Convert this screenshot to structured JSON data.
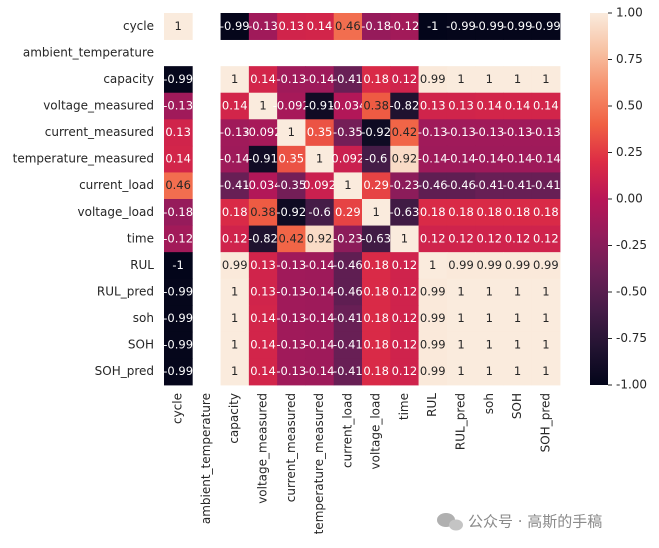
{
  "chart_data": {
    "type": "heatmap",
    "categories": [
      "cycle",
      "ambient_temperature",
      "capacity",
      "voltage_measured",
      "current_measured",
      "temperature_measured",
      "current_load",
      "voltage_load",
      "time",
      "RUL",
      "RUL_pred",
      "soh",
      "SOH",
      "SOH_pred"
    ],
    "values": [
      [
        1,
        null,
        -0.99,
        -0.13,
        0.13,
        0.14,
        0.46,
        -0.18,
        -0.12,
        -1,
        -0.99,
        -0.99,
        -0.99,
        -0.99
      ],
      [
        null,
        null,
        null,
        null,
        null,
        null,
        null,
        null,
        null,
        null,
        null,
        null,
        null,
        null
      ],
      [
        -0.99,
        null,
        1,
        0.14,
        -0.13,
        -0.14,
        -0.41,
        0.18,
        0.12,
        0.99,
        1,
        1,
        1,
        1
      ],
      [
        -0.13,
        null,
        0.14,
        1,
        -0.092,
        -0.91,
        -0.034,
        0.38,
        -0.82,
        0.13,
        0.13,
        0.14,
        0.14,
        0.14
      ],
      [
        0.13,
        null,
        -0.13,
        -0.092,
        1,
        0.35,
        -0.35,
        -0.92,
        0.42,
        -0.13,
        -0.13,
        -0.13,
        -0.13,
        -0.13
      ],
      [
        0.14,
        null,
        -0.14,
        -0.91,
        0.35,
        1,
        0.092,
        -0.6,
        0.92,
        -0.14,
        -0.14,
        -0.14,
        -0.14,
        -0.14
      ],
      [
        0.46,
        null,
        -0.41,
        -0.034,
        -0.35,
        0.092,
        1,
        0.29,
        -0.23,
        -0.46,
        -0.46,
        -0.41,
        -0.41,
        -0.41
      ],
      [
        -0.18,
        null,
        0.18,
        0.38,
        -0.92,
        -0.6,
        0.29,
        1,
        -0.63,
        0.18,
        0.18,
        0.18,
        0.18,
        0.18
      ],
      [
        -0.12,
        null,
        0.12,
        -0.82,
        0.42,
        0.92,
        -0.23,
        -0.63,
        1,
        0.12,
        0.12,
        0.12,
        0.12,
        0.12
      ],
      [
        -1,
        null,
        0.99,
        0.13,
        -0.13,
        -0.14,
        -0.46,
        0.18,
        0.12,
        1,
        0.99,
        0.99,
        0.99,
        0.99
      ],
      [
        -0.99,
        null,
        1,
        0.13,
        -0.13,
        -0.14,
        -0.46,
        0.18,
        0.12,
        0.99,
        1,
        1,
        1,
        1
      ],
      [
        -0.99,
        null,
        1,
        0.14,
        -0.13,
        -0.14,
        -0.41,
        0.18,
        0.12,
        0.99,
        1,
        1,
        1,
        1
      ],
      [
        -0.99,
        null,
        1,
        0.14,
        -0.13,
        -0.14,
        -0.41,
        0.18,
        0.12,
        0.99,
        1,
        1,
        1,
        1
      ],
      [
        -0.99,
        null,
        1,
        0.14,
        -0.13,
        -0.14,
        -0.41,
        0.18,
        0.12,
        0.99,
        1,
        1,
        1,
        1
      ]
    ],
    "colormap": "rocket",
    "clim": [
      -1,
      1
    ],
    "cticks": [
      {
        "value": -1,
        "label": "-1.00"
      },
      {
        "value": -0.75,
        "label": "-0.75"
      },
      {
        "value": -0.5,
        "label": "-0.50"
      },
      {
        "value": -0.25,
        "label": "-0.25"
      },
      {
        "value": 0,
        "label": "0.00"
      },
      {
        "value": 0.25,
        "label": "0.25"
      },
      {
        "value": 0.5,
        "label": "0.50"
      },
      {
        "value": 0.75,
        "label": "0.75"
      },
      {
        "value": 1,
        "label": "1.00"
      }
    ],
    "watermark": "公众号 · 高斯的手稿"
  }
}
